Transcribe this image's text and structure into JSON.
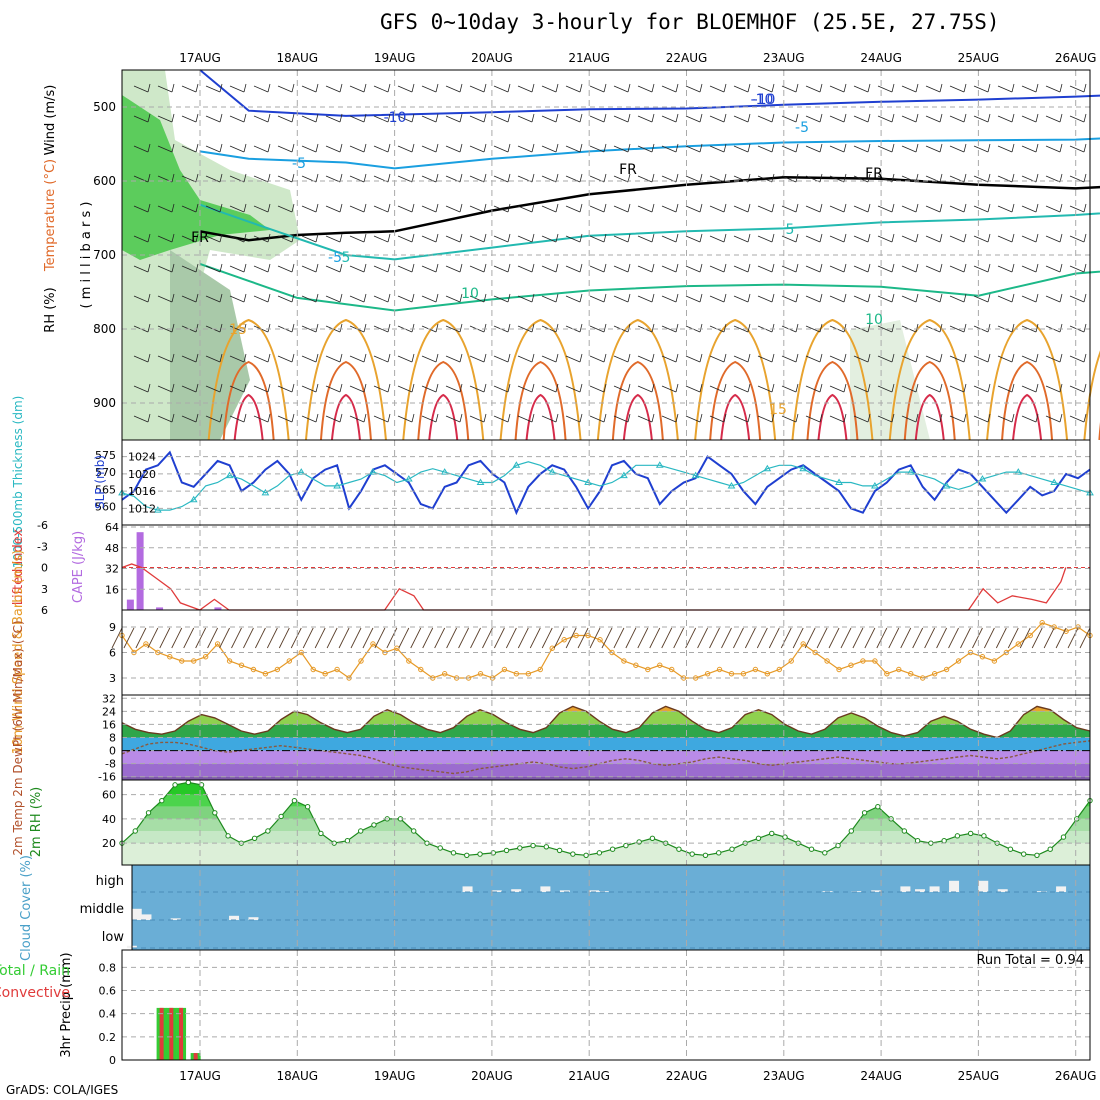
{
  "title": "GFS 0~10day 3-hourly for BLOEMHOF (25.5E, 27.75S)",
  "footer": "GrADS: COLA/IGES",
  "run_total": "Run Total = 0.94",
  "colors": {
    "grid": "#aaaaaa",
    "panel_border": "#000000",
    "rh_green": "#33cc33",
    "slp": "#1f3fd0",
    "thickness": "#2ab8c2",
    "cape": "#b36be0",
    "lifted": "#e03b3b",
    "wind_speed": "#e69a28",
    "cloud_bg": "#6aaed6",
    "precip_total": "#33cc33",
    "precip_conv": "#e03b3b"
  },
  "chart_data": [
    {
      "panel": "upper-air",
      "type": "contour",
      "date_labels": [
        "17AUG",
        "18AUG",
        "19AUG",
        "20AUG",
        "21AUG",
        "22AUG",
        "23AUG",
        "24AUG",
        "25AUG",
        "26AUG"
      ],
      "ylabel": "( m i l l i b a r s )",
      "side_labels": [
        "Wind (m/s)",
        "Temperature (°C)",
        "RH (%)"
      ],
      "yticks": [
        "500",
        "600",
        "700",
        "800",
        "900"
      ],
      "ylim": [
        950,
        450
      ],
      "contour_labels": [
        "-10",
        "-10",
        "-5",
        "-5",
        "-5",
        "FR",
        "FR",
        "FR",
        "-10",
        "5",
        "5",
        "10",
        "10",
        "15",
        "15"
      ],
      "temperature_lines": [
        {
          "label": "-10",
          "points": [
            [
              0,
              450
            ],
            [
              0.5,
              505
            ],
            [
              1.5,
              512
            ],
            [
              3,
              507
            ],
            [
              4,
              503
            ],
            [
              5,
              502
            ],
            [
              6,
              497
            ],
            [
              7,
              493
            ],
            [
              8,
              490
            ],
            [
              9,
              486
            ],
            [
              9.7,
              482
            ]
          ]
        },
        {
          "label": "-5",
          "points": [
            [
              0,
              560
            ],
            [
              0.5,
              570
            ],
            [
              1.5,
              575
            ],
            [
              2,
              583
            ],
            [
              3,
              570
            ],
            [
              4,
              560
            ],
            [
              5,
              553
            ],
            [
              6,
              548
            ],
            [
              7,
              546
            ],
            [
              8,
              545
            ],
            [
              9,
              544
            ],
            [
              9.7,
              540
            ]
          ]
        },
        {
          "label": "FR",
          "points": [
            [
              0,
              668
            ],
            [
              0.5,
              680
            ],
            [
              1,
              673
            ],
            [
              1.5,
              670
            ],
            [
              2,
              668
            ],
            [
              3,
              640
            ],
            [
              4,
              618
            ],
            [
              5,
              605
            ],
            [
              6,
              595
            ],
            [
              7,
              597
            ],
            [
              8,
              605
            ],
            [
              9,
              610
            ],
            [
              9.7,
              605
            ]
          ]
        },
        {
          "label": "5",
          "points": [
            [
              0,
              632
            ],
            [
              0.5,
              655
            ],
            [
              1.5,
              700
            ],
            [
              2,
              706
            ],
            [
              3,
              690
            ],
            [
              4,
              674
            ],
            [
              5,
              668
            ],
            [
              6,
              664
            ],
            [
              7,
              656
            ],
            [
              8,
              652
            ],
            [
              9,
              646
            ],
            [
              9.7,
              640
            ]
          ]
        },
        {
          "label": "10",
          "points": [
            [
              0,
              712
            ],
            [
              0.5,
              735
            ],
            [
              1,
              758
            ],
            [
              2,
              775
            ],
            [
              3,
              760
            ],
            [
              4,
              748
            ],
            [
              5,
              742
            ],
            [
              6,
              740
            ],
            [
              7,
              743
            ],
            [
              8,
              755
            ],
            [
              9,
              725
            ],
            [
              9.7,
              718
            ]
          ]
        }
      ]
    },
    {
      "panel": "slp-thickness",
      "type": "line",
      "ylabel_left": "1000-500mb Thickness (dm)",
      "ylabel_right": "SLP (mb)",
      "yticks_left": [
        "575",
        "570",
        "565",
        "560"
      ],
      "yticks_right": [
        "1024",
        "1020",
        "1016",
        "1012"
      ],
      "series": [
        {
          "name": "SLP (mb)",
          "values": [
            1014,
            1016,
            1021,
            1022,
            1025,
            1018,
            1017,
            1020,
            1023,
            1022,
            1016,
            1018,
            1021,
            1023,
            1020,
            1014,
            1019,
            1021,
            1022,
            1012,
            1016,
            1021,
            1022,
            1020,
            1018,
            1013,
            1012,
            1017,
            1018,
            1022,
            1023,
            1020,
            1018,
            1011,
            1017,
            1020,
            1022,
            1021,
            1017,
            1012,
            1016,
            1022,
            1023,
            1020,
            1019,
            1013,
            1016,
            1018,
            1019,
            1024,
            1022,
            1020,
            1016,
            1013,
            1017,
            1019,
            1021,
            1022,
            1020,
            1018,
            1016,
            1012,
            1011,
            1016,
            1018,
            1021,
            1022,
            1017,
            1014,
            1018,
            1021,
            1020,
            1017,
            1014,
            1011,
            1014,
            1017,
            1015,
            1016,
            1020,
            1019,
            1021
          ]
        },
        {
          "name": "Thickness (dm)",
          "values": [
            564,
            563,
            560,
            559,
            559,
            560,
            562,
            566,
            567,
            569,
            568,
            566,
            564,
            566,
            569,
            570,
            568,
            566,
            566,
            567,
            568,
            570,
            569,
            567,
            568,
            570,
            571,
            570,
            569,
            568,
            567,
            567,
            569,
            572,
            573,
            572,
            570,
            569,
            568,
            567,
            566,
            567,
            569,
            572,
            572,
            572,
            571,
            570,
            569,
            568,
            567,
            566,
            567,
            569,
            571,
            572,
            572,
            571,
            569,
            568,
            567,
            567,
            566,
            566,
            568,
            570,
            570,
            569,
            568,
            566,
            565,
            566,
            568,
            569,
            570,
            570,
            569,
            568,
            567,
            566,
            565,
            564
          ]
        }
      ]
    },
    {
      "panel": "instability",
      "type": "bar",
      "ylabel_left": "Lifted Index",
      "ylabel_right": "CAPE (J/kg)",
      "yticks_left": [
        "-6",
        "-3",
        "0",
        "3",
        "6"
      ],
      "yticks_right": [
        "64",
        "48",
        "32",
        "16"
      ],
      "cape_bars": [
        {
          "x": 0.05,
          "value": 8
        },
        {
          "x": 0.15,
          "value": 60
        },
        {
          "x": 0.35,
          "value": 2
        },
        {
          "x": 0.95,
          "value": 2
        }
      ],
      "lifted_index": [
        [
          0,
          0
        ],
        [
          0.1,
          -0.5
        ],
        [
          0.2,
          0
        ],
        [
          0.35,
          1.5
        ],
        [
          0.5,
          3
        ],
        [
          0.6,
          5
        ],
        [
          0.8,
          6
        ],
        [
          0.95,
          4.5
        ],
        [
          1.1,
          6
        ],
        [
          2.7,
          6
        ],
        [
          2.85,
          3
        ],
        [
          3.0,
          4
        ],
        [
          3.1,
          6
        ],
        [
          8.7,
          6
        ],
        [
          8.85,
          3
        ],
        [
          9,
          5
        ],
        [
          9.15,
          4
        ],
        [
          9.35,
          4.5
        ],
        [
          9.5,
          5
        ],
        [
          9.65,
          2
        ],
        [
          9.7,
          0
        ]
      ]
    },
    {
      "panel": "10m-wind",
      "type": "line",
      "ylabel": "10m Wind Speed & Barbs (m/s)",
      "yticks": [
        "9",
        "6",
        "3"
      ],
      "series": [
        {
          "name": "Wind speed (m/s)",
          "values": [
            8,
            6,
            7,
            6,
            5.5,
            5,
            5,
            5.5,
            7,
            5,
            4.5,
            4,
            3.5,
            4,
            5,
            6,
            4,
            3.5,
            4,
            3,
            5,
            7,
            6,
            6.5,
            5,
            4,
            3,
            3.5,
            3,
            3,
            3.5,
            3,
            4,
            3.5,
            3.5,
            4,
            6.5,
            7.5,
            8,
            8,
            7.5,
            6,
            5,
            4.5,
            4,
            4.5,
            4,
            3,
            3,
            3.5,
            4,
            3.5,
            3.5,
            4,
            3.5,
            4,
            5,
            7,
            6,
            5,
            4,
            4.5,
            5,
            5,
            3.5,
            4,
            3.5,
            3,
            3.5,
            4,
            5,
            6,
            5.5,
            5,
            6,
            7,
            8,
            9.5,
            9,
            8.5,
            9,
            8
          ]
        }
      ]
    },
    {
      "panel": "2m-temp",
      "type": "area",
      "ylabel": "2m Temp 2m DewPt (6hr Min/Max) (°C)",
      "yticks": [
        "32",
        "24",
        "16",
        "8",
        "0",
        "-8",
        "-16"
      ],
      "series": [
        {
          "name": "2m Temp",
          "values": [
            17,
            13,
            11,
            10,
            12,
            18,
            22,
            20,
            16,
            12,
            10,
            12,
            19,
            24,
            22,
            17,
            13,
            11,
            13,
            21,
            25,
            22,
            17,
            13,
            11,
            14,
            21,
            25,
            22,
            17,
            13,
            11,
            14,
            23,
            27,
            24,
            18,
            13,
            11,
            14,
            23,
            27,
            24,
            18,
            13,
            11,
            14,
            22,
            25,
            22,
            16,
            12,
            10,
            13,
            20,
            23,
            20,
            15,
            11,
            9,
            11,
            18,
            21,
            18,
            13,
            10,
            8,
            12,
            22,
            27,
            25,
            19,
            14,
            12
          ]
        },
        {
          "name": "2m DewPt",
          "values": [
            -2,
            1,
            4,
            5,
            5,
            4,
            2,
            0,
            -1,
            0,
            1,
            2,
            3,
            2,
            1,
            0,
            -1,
            -2,
            -3,
            -5,
            -8,
            -10,
            -11,
            -12,
            -13,
            -14,
            -13,
            -11,
            -10,
            -9,
            -8,
            -7,
            -8,
            -10,
            -11,
            -10,
            -8,
            -6,
            -5,
            -6,
            -8,
            -9,
            -8,
            -7,
            -5,
            -4,
            -5,
            -6,
            -8,
            -9,
            -8,
            -7,
            -6,
            -5,
            -4,
            -5,
            -6,
            -7,
            -8,
            -8,
            -7,
            -6,
            -5,
            -4,
            -3,
            -4,
            -5,
            -4,
            -2,
            0,
            2,
            4,
            5,
            6
          ]
        }
      ]
    },
    {
      "panel": "2m-rh",
      "type": "area",
      "ylabel": "2m RH (%)",
      "yticks": [
        "60",
        "40",
        "20"
      ],
      "series": [
        {
          "name": "2m RH",
          "values": [
            20,
            30,
            45,
            55,
            68,
            70,
            68,
            45,
            26,
            20,
            24,
            30,
            42,
            55,
            50,
            28,
            20,
            22,
            30,
            35,
            40,
            40,
            30,
            20,
            16,
            12,
            10,
            11,
            12,
            14,
            16,
            18,
            17,
            14,
            11,
            10,
            12,
            15,
            18,
            21,
            24,
            20,
            15,
            11,
            10,
            12,
            15,
            20,
            24,
            28,
            25,
            20,
            15,
            12,
            18,
            30,
            45,
            50,
            40,
            30,
            22,
            20,
            22,
            26,
            28,
            26,
            20,
            15,
            11,
            10,
            15,
            25,
            40,
            55
          ]
        }
      ]
    },
    {
      "panel": "cloud-cover",
      "type": "bar",
      "ylabel": "Cloud Cover (%)",
      "levels": [
        "high",
        "middle",
        "low"
      ],
      "high": [
        [
          3.5,
          20
        ],
        [
          3.8,
          6
        ],
        [
          4.0,
          10
        ],
        [
          4.3,
          20
        ],
        [
          4.5,
          6
        ],
        [
          4.8,
          6
        ],
        [
          4.9,
          3
        ],
        [
          7.2,
          3
        ],
        [
          7.5,
          3
        ],
        [
          7.7,
          6
        ],
        [
          8.0,
          20
        ],
        [
          8.15,
          10
        ],
        [
          8.3,
          20
        ],
        [
          8.5,
          40
        ],
        [
          8.8,
          40
        ],
        [
          9.0,
          10
        ],
        [
          9.4,
          3
        ],
        [
          9.6,
          20
        ]
      ],
      "middle": [
        [
          0.1,
          40
        ],
        [
          0.2,
          20
        ],
        [
          0.5,
          6
        ],
        [
          1.1,
          15
        ],
        [
          1.3,
          10
        ]
      ],
      "low": [
        [
          0.05,
          8
        ]
      ]
    },
    {
      "panel": "precip",
      "type": "bar",
      "ylabel": "3hr Precip (mm)",
      "legend": [
        "Total / Rain",
        "Convective"
      ],
      "yticks": [
        "0.8",
        "0.6",
        "0.4",
        "0.2",
        "0"
      ],
      "ylim": [
        0,
        0.95
      ],
      "total": [
        [
          0.15,
          0.45
        ],
        [
          0.25,
          0.45
        ],
        [
          0.35,
          0.45
        ],
        [
          0.5,
          0.06
        ]
      ],
      "convective": [
        [
          0.15,
          0.45
        ],
        [
          0.25,
          0.45
        ],
        [
          0.35,
          0.45
        ],
        [
          0.5,
          0.06
        ]
      ]
    }
  ]
}
